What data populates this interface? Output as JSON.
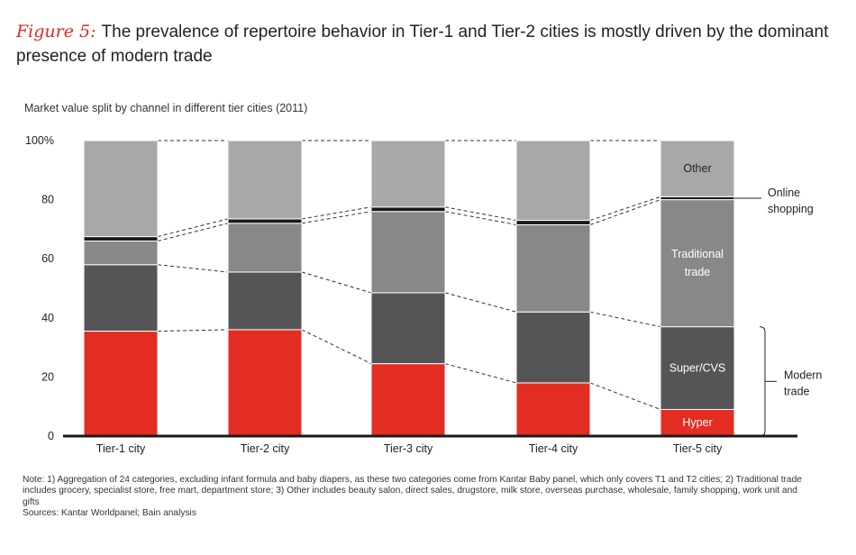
{
  "figure_label": "Figure 5:",
  "figure_title": "The prevalence of repertoire behavior in Tier-1 and Tier-2 cities is mostly driven by the dominant presence of modern trade",
  "notes": [
    "Note: 1) Aggregation of 24 categories, excluding infant formula and baby diapers, as these two categories come from Kantar Baby panel, which only covers T1 and T2 cities; 2) Traditional trade includes grocery, specialist store, free mart, department store;  3) Other includes beauty salon, direct sales, drugstore, milk store, overseas purchase, wholesale, family shopping, work unit and gifts",
    "Sources: Kantar Worldpanel; Bain analysis"
  ],
  "chart_data": {
    "type": "bar",
    "stacked": true,
    "title": "Market value split by channel in different tier cities (2011)",
    "xlabel": "",
    "ylabel": "",
    "ylim": [
      0,
      100
    ],
    "yticks": [
      0,
      20,
      40,
      60,
      80,
      100
    ],
    "ytick_labels": [
      "0",
      "20",
      "40",
      "60",
      "80",
      "100%"
    ],
    "categories": [
      "Tier-1 city",
      "Tier-2 city",
      "Tier-3 city",
      "Tier-4 city",
      "Tier-5 city"
    ],
    "series": [
      {
        "name": "Hyper",
        "color": "#e32d22",
        "values": [
          35.5,
          36,
          24.5,
          18,
          9
        ]
      },
      {
        "name": "Super/CVS",
        "color": "#555557",
        "values": [
          22.5,
          19.5,
          24,
          24,
          28
        ]
      },
      {
        "name": "Traditional trade",
        "color": "#88888a",
        "values": [
          8,
          16.5,
          27.5,
          29.5,
          43
        ]
      },
      {
        "name": "Online shopping",
        "color": "#1a1a1a",
        "values": [
          1.5,
          1.5,
          1.5,
          1.5,
          1
        ]
      },
      {
        "name": "Other",
        "color": "#a8a8aa",
        "values": [
          32.5,
          26.5,
          22.5,
          27,
          19
        ]
      }
    ],
    "segment_labels": [
      "Hyper",
      "Super/CVS",
      "Traditional trade",
      "Online shopping",
      "Other"
    ],
    "right_annotations": {
      "online": "Online shopping",
      "modern": "Modern trade"
    }
  }
}
